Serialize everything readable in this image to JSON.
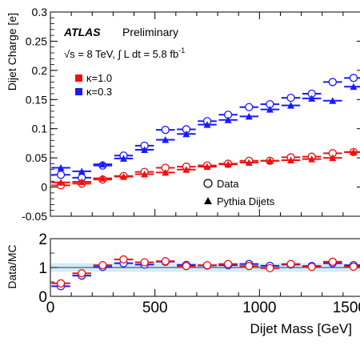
{
  "chart_data": [
    {
      "type": "scatter",
      "ylabel": "Dijet Charge [e]",
      "ylim": [
        -0.05,
        0.3
      ],
      "xlim": [
        0,
        1500
      ],
      "y_ticks": [
        "-0.05",
        "0",
        "0.05",
        "0.1",
        "0.15",
        "0.2",
        "0.25",
        "0.3"
      ],
      "x": [
        50,
        150,
        250,
        350,
        450,
        550,
        650,
        750,
        850,
        950,
        1050,
        1150,
        1250,
        1350,
        1450
      ],
      "x_bin_halfwidth": 50,
      "series": [
        {
          "name": "Data",
          "kappa": "κ=0.3",
          "color": "#1a1aff",
          "marker": "open-circle",
          "values": [
            0.021,
            0.016,
            0.037,
            0.054,
            0.071,
            0.098,
            0.099,
            0.113,
            0.124,
            0.137,
            0.142,
            0.153,
            0.16,
            0.18,
            0.187
          ]
        },
        {
          "name": "Pythia Dijets",
          "kappa": "κ=0.3",
          "color": "#1a1aff",
          "marker": "filled-triangle",
          "values": [
            0.033,
            0.027,
            0.039,
            0.049,
            0.064,
            0.081,
            0.091,
            0.107,
            0.115,
            0.121,
            0.133,
            0.14,
            0.152,
            0.148,
            0.172
          ]
        },
        {
          "name": "Data",
          "kappa": "κ=1.0",
          "color": "#ee1111",
          "marker": "open-circle",
          "values": [
            0.003,
            0.006,
            0.013,
            0.019,
            0.026,
            0.033,
            0.035,
            0.037,
            0.04,
            0.045,
            0.045,
            0.051,
            0.052,
            0.058,
            0.06
          ]
        },
        {
          "name": "Pythia Dijets",
          "kappa": "κ=1.0",
          "color": "#ee1111",
          "marker": "filled-triangle",
          "values": [
            0.008,
            0.009,
            0.015,
            0.018,
            0.022,
            0.025,
            0.03,
            0.035,
            0.039,
            0.042,
            0.045,
            0.046,
            0.048,
            0.05,
            0.06
          ]
        }
      ],
      "annotations": {
        "atlas": "ATLAS",
        "status": "Preliminary",
        "energy_prefix": "√s = 8 TeV, ∫ L dt = 5.8 fb",
        "energy_exp": "-1"
      },
      "legend_kappa": [
        {
          "label": "κ=1.0",
          "color": "#ee1111"
        },
        {
          "label": "κ=0.3",
          "color": "#1a1aff"
        }
      ],
      "legend_markers": [
        {
          "label": "Data",
          "marker": "open-circle"
        },
        {
          "label": "Pythia Dijets",
          "marker": "filled-triangle"
        }
      ]
    },
    {
      "type": "scatter",
      "ylabel": "Data/MC",
      "ylim": [
        0,
        2
      ],
      "y_ticks": [
        "0",
        "1",
        "2"
      ],
      "xlabel": "Dijet Mass [GeV]",
      "xlim": [
        0,
        1500
      ],
      "x_ticks": [
        "0",
        "500",
        "1000",
        "1500"
      ],
      "x": [
        50,
        150,
        250,
        350,
        450,
        550,
        650,
        750,
        850,
        950,
        1050,
        1150,
        1250,
        1350,
        1450
      ],
      "x_bin_halfwidth": 50,
      "reference_line": 1,
      "band_color": "#7fc8e6",
      "series": [
        {
          "kappa": "κ=0.3",
          "color": "#1a1aff",
          "marker": "open-circle",
          "values": [
            0.35,
            0.72,
            1.02,
            1.15,
            1.1,
            1.2,
            1.09,
            1.07,
            1.08,
            1.12,
            1.06,
            1.1,
            1.05,
            1.15,
            1.08
          ]
        },
        {
          "kappa": "κ=1.0",
          "color": "#ee1111",
          "marker": "open-circle",
          "values": [
            0.45,
            0.8,
            1.08,
            1.28,
            1.18,
            1.22,
            1.05,
            1.08,
            1.12,
            1.05,
            0.98,
            1.12,
            1.02,
            1.2,
            1.03
          ]
        }
      ]
    }
  ]
}
